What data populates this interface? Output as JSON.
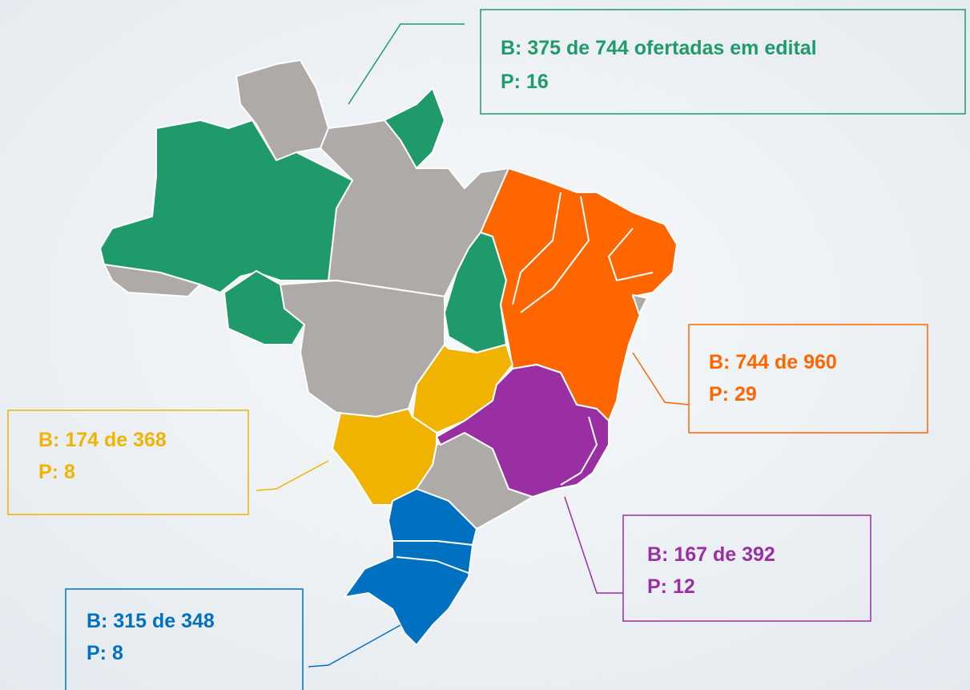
{
  "regions": [
    {
      "lines": [
        "B: 375 de 744 ofertadas em edital",
        "P: 16"
      ],
      "color": "#1f9a6a"
    },
    {
      "lines": [
        "B: 744 de 960",
        "P: 29"
      ],
      "color": "#ff6600"
    },
    {
      "lines": [
        "B: 174 de 368",
        "P: 8"
      ],
      "color": "#f0b400"
    },
    {
      "lines": [
        "B: 167 de 392",
        "P: 12"
      ],
      "color": "#9a2fa3"
    },
    {
      "lines": [
        "B: 315 de 348",
        "P: 8"
      ],
      "color": "#0070c0"
    }
  ]
}
